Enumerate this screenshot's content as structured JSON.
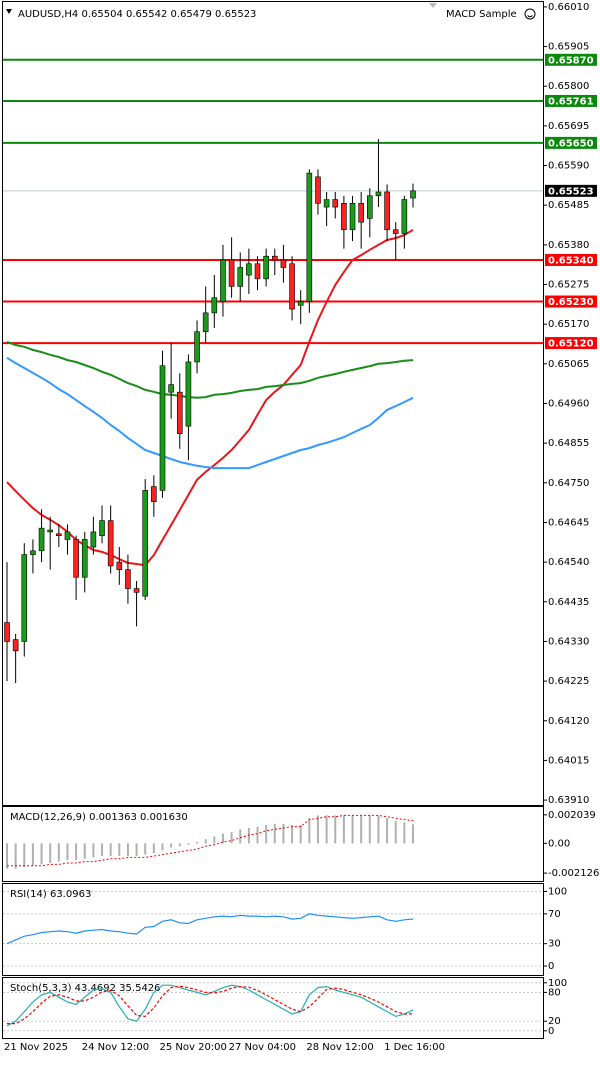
{
  "chart_data": [
    {
      "type": "candlestick",
      "title": "AUDUSD,H4 0.65504 0.65542 0.65479 0.65523",
      "indicator": "MACD Sample",
      "categories": [
        "21 Nov 2025",
        null,
        null,
        null,
        null,
        null,
        null,
        null,
        null,
        "24 Nov 12:00",
        null,
        null,
        null,
        null,
        null,
        null,
        null,
        null,
        "25 Nov 20:00",
        null,
        null,
        null,
        null,
        null,
        null,
        null,
        "27 Nov 04:00",
        null,
        null,
        null,
        null,
        null,
        null,
        null,
        null,
        "28 Nov 12:00",
        null,
        null,
        null,
        null,
        null,
        null,
        null,
        null,
        "1 Dec 16:00",
        null,
        null,
        null
      ],
      "open": [
        0.6438,
        0.64335,
        0.6433,
        0.6456,
        0.6457,
        0.6462,
        0.64615,
        0.646,
        0.646,
        0.645,
        0.6458,
        0.6461,
        0.6465,
        0.6454,
        0.6452,
        0.6447,
        0.6445,
        0.6474,
        0.6473,
        0.6499,
        0.6499,
        0.649,
        0.6507,
        0.6515,
        0.652,
        0.6523,
        0.6534,
        0.6527,
        0.653,
        0.6533,
        0.6529,
        0.6535,
        0.6534,
        0.6533,
        0.6522,
        0.6523,
        0.6556,
        0.6548,
        0.655,
        0.6549,
        0.6542,
        0.6549,
        0.6545,
        0.6551,
        0.6552,
        0.6542,
        0.6541,
        0.65504
      ],
      "high": [
        0.6454,
        0.6435,
        0.6459,
        0.646,
        0.6468,
        0.6466,
        0.6464,
        0.6464,
        0.6461,
        0.6462,
        0.6466,
        0.6469,
        0.6469,
        0.6458,
        0.6456,
        0.6449,
        0.6476,
        0.6477,
        0.651,
        0.6512,
        0.6504,
        0.6509,
        0.6518,
        0.6527,
        0.653,
        0.6538,
        0.654,
        0.6536,
        0.6537,
        0.6535,
        0.6537,
        0.6537,
        0.6538,
        0.6535,
        0.6526,
        0.6558,
        0.6558,
        0.6552,
        0.6552,
        0.6551,
        0.6551,
        0.6552,
        0.6553,
        0.6566,
        0.6554,
        0.6544,
        0.6551,
        0.65542
      ],
      "low": [
        0.64225,
        0.6422,
        0.6429,
        0.6451,
        0.6454,
        0.6452,
        0.6458,
        0.6456,
        0.6444,
        0.6446,
        0.6456,
        0.6459,
        0.6451,
        0.6448,
        0.6443,
        0.6437,
        0.6444,
        0.6466,
        0.6471,
        0.6492,
        0.6484,
        0.6481,
        0.6504,
        0.6512,
        0.6516,
        0.6519,
        0.6524,
        0.6523,
        0.6525,
        0.6526,
        0.6527,
        0.653,
        0.6528,
        0.6518,
        0.6517,
        0.652,
        0.6546,
        0.6543,
        0.6545,
        0.6537,
        0.6539,
        0.6537,
        0.654,
        0.6548,
        0.6539,
        0.6534,
        0.6537,
        0.65479
      ],
      "close": [
        0.6433,
        0.64305,
        0.6456,
        0.6457,
        0.6463,
        0.64625,
        0.6461,
        0.6462,
        0.645,
        0.646,
        0.6462,
        0.6465,
        0.6453,
        0.6452,
        0.6447,
        0.6446,
        0.6473,
        0.647,
        0.6506,
        0.6501,
        0.6488,
        0.6507,
        0.6515,
        0.652,
        0.6524,
        0.6534,
        0.6527,
        0.6532,
        0.6533,
        0.6529,
        0.6535,
        0.6534,
        0.6532,
        0.6521,
        0.6523,
        0.6557,
        0.6549,
        0.655,
        0.6548,
        0.6542,
        0.6549,
        0.6544,
        0.6551,
        0.6552,
        0.6542,
        0.6541,
        0.655,
        0.65523
      ],
      "up_color": "#1a9c1a",
      "down_color": "#ff2020",
      "series": [
        {
          "color": "#e8161a",
          "values": [
            0.64752,
            0.64728,
            0.64705,
            0.64683,
            0.64665,
            0.64652,
            0.64638,
            0.6462,
            0.64599,
            0.64585,
            0.64572,
            0.64567,
            0.64559,
            0.64548,
            0.64538,
            0.64535,
            0.64532,
            0.64559,
            0.64599,
            0.64638,
            0.64678,
            0.64718,
            0.64758,
            0.64779,
            0.64797,
            0.64816,
            0.64837,
            0.64863,
            0.6489,
            0.6493,
            0.64969,
            0.64991,
            0.65009,
            0.65036,
            0.65062,
            0.65123,
            0.65181,
            0.65229,
            0.65274,
            0.65308,
            0.6534,
            0.65353,
            0.65367,
            0.6538,
            0.65393,
            0.65398,
            0.65406,
            0.6542
          ]
        },
        {
          "color": "#1a8c1a",
          "values": [
            0.65123,
            0.65115,
            0.6511,
            0.65102,
            0.65096,
            0.65089,
            0.65083,
            0.65075,
            0.6507,
            0.65062,
            0.65054,
            0.65044,
            0.65036,
            0.65025,
            0.65014,
            0.65006,
            0.64996,
            0.64991,
            0.64985,
            0.64983,
            0.6498,
            0.64977,
            0.64975,
            0.64977,
            0.64983,
            0.64985,
            0.64988,
            0.64993,
            0.64996,
            0.64998,
            0.65004,
            0.65006,
            0.65009,
            0.65012,
            0.65014,
            0.6502,
            0.65028,
            0.65033,
            0.65038,
            0.65044,
            0.65049,
            0.65054,
            0.65059,
            0.65065,
            0.65067,
            0.6507,
            0.65073,
            0.65075
          ]
        },
        {
          "color": "#3399ff",
          "values": [
            0.65081,
            0.65067,
            0.65054,
            0.65041,
            0.65028,
            0.65014,
            0.64998,
            0.64985,
            0.64969,
            0.64953,
            0.64938,
            0.64922,
            0.64903,
            0.64887,
            0.64869,
            0.64853,
            0.64837,
            0.64829,
            0.64821,
            0.64813,
            0.64805,
            0.648,
            0.64795,
            0.64792,
            0.64789,
            0.64789,
            0.64789,
            0.64789,
            0.64789,
            0.64797,
            0.64805,
            0.64813,
            0.64821,
            0.64829,
            0.64837,
            0.64842,
            0.6485,
            0.64856,
            0.64863,
            0.64871,
            0.64882,
            0.64893,
            0.64903,
            0.64922,
            0.64943,
            0.64953,
            0.64964,
            0.64975
          ]
        }
      ],
      "levels": {
        "values": [
          0.6587,
          0.65761,
          0.6565,
          0.6534,
          0.6523,
          0.6512
        ],
        "value_labels": [
          "0.65870",
          "0.65761",
          "0.65650",
          "0.65340",
          "0.65230",
          "0.65120"
        ],
        "colors": [
          "#0a8a0a",
          "#0a8a0a",
          "#0a8a0a",
          "#ff0000",
          "#ff0000",
          "#ff0000"
        ]
      },
      "price_line": {
        "value": 0.65523,
        "value_label": "0.65523",
        "color": "#c0c8d8"
      },
      "ylim": [
        0.63897,
        0.66023
      ],
      "yticks": [
        {
          "value": 0.6601,
          "label": "0.66010"
        },
        0.65905,
        {
          "value": 0.658,
          "label": "0.65800"
        },
        0.65695,
        {
          "value": 0.6559,
          "label": "0.65590"
        },
        0.65485,
        {
          "value": 0.6538,
          "label": "0.65380"
        },
        0.65275,
        {
          "value": 0.6517,
          "label": "0.65170"
        },
        0.65065,
        {
          "value": 0.6496,
          "label": "0.64960"
        },
        0.64855,
        {
          "value": 0.6475,
          "label": "0.64750"
        },
        0.64645,
        {
          "value": 0.6454,
          "label": "0.64540"
        },
        0.64435,
        {
          "value": 0.6433,
          "label": "0.64330"
        },
        0.64225,
        {
          "value": 0.6412,
          "label": "0.64120"
        },
        0.64015,
        {
          "value": 0.6391,
          "label": "0.63910"
        }
      ],
      "grid": false
    },
    {
      "type": "macd",
      "title": "MACD(12,26,9) 0.001363 0.001630",
      "ylim": [
        -0.00269,
        0.0026
      ],
      "yticks": [
        0.002039,
        {
          "value": 0,
          "label": "0.00"
        },
        -0.002126
      ],
      "grid": false,
      "series": [
        {
          "color": "#b0b0b0",
          "mark": "bar",
          "values": [
            -0.0018,
            -0.0018,
            -0.0017,
            -0.0016,
            -0.0015,
            -0.0014,
            -0.0013,
            -0.0012,
            -0.0012,
            -0.0011,
            -0.001,
            -0.0009,
            -0.0009,
            -0.0009,
            -0.0009,
            -0.0009,
            -0.0008,
            -0.0007,
            -0.0005,
            -0.0003,
            -0.0002,
            -0.0001,
            0.0001,
            0.0003,
            0.0005,
            0.0007,
            0.0008,
            0.001,
            0.0011,
            0.0012,
            0.0013,
            0.0014,
            0.0014,
            0.0013,
            0.0013,
            0.0018,
            0.002,
            0.002,
            0.002,
            0.002,
            0.002,
            0.002,
            0.002,
            0.002,
            0.0018,
            0.0016,
            0.0015,
            0.001363
          ]
        },
        {
          "color": "#ff0000",
          "mark": "line",
          "dash": true,
          "values": [
            -0.0016,
            -0.0016,
            -0.0016,
            -0.0016,
            -0.0016,
            -0.0015,
            -0.0015,
            -0.0014,
            -0.0014,
            -0.0013,
            -0.0013,
            -0.0012,
            -0.0011,
            -0.0011,
            -0.001,
            -0.001,
            -0.001,
            -0.0009,
            -0.0008,
            -0.0007,
            -0.0006,
            -0.0005,
            -0.0004,
            -0.0002,
            -0.0001,
            0.0001,
            0.0002,
            0.0004,
            0.0006,
            0.0007,
            0.0009,
            0.001,
            0.0011,
            0.0012,
            0.0012,
            0.0017,
            0.0018,
            0.0019,
            0.0019,
            0.002,
            0.002,
            0.002,
            0.002,
            0.002,
            0.0019,
            0.0018,
            0.0017,
            0.00163
          ]
        }
      ]
    },
    {
      "type": "line",
      "title": "RSI(14) 63.0963",
      "ylim": [
        -12,
        110
      ],
      "yticks": [
        100,
        70,
        30,
        0
      ],
      "grid": true,
      "series": [
        {
          "color": "#1e90ff",
          "values": [
            30,
            35,
            40,
            42,
            45,
            46,
            47,
            46,
            44,
            47,
            48,
            49,
            47,
            46,
            44,
            43,
            52,
            53,
            60,
            62,
            58,
            57,
            62,
            64,
            66,
            67,
            66,
            68,
            67,
            67,
            66,
            67,
            66,
            63,
            64,
            70,
            68,
            67,
            66,
            65,
            64,
            65,
            66,
            67,
            62,
            60,
            62,
            63.0963
          ]
        }
      ]
    },
    {
      "type": "line",
      "title": "Stoch(5,3,3) 43.4692 35.5426",
      "ylim": [
        -15,
        110
      ],
      "yticks": [
        100,
        80,
        20,
        0
      ],
      "grid": true,
      "series": [
        {
          "color": "#20b2aa",
          "values": [
            10,
            20,
            40,
            60,
            75,
            80,
            70,
            60,
            55,
            70,
            85,
            88,
            80,
            50,
            25,
            20,
            45,
            80,
            95,
            95,
            90,
            85,
            80,
            75,
            82,
            90,
            95,
            92,
            85,
            75,
            65,
            55,
            45,
            35,
            40,
            75,
            90,
            92,
            85,
            80,
            75,
            70,
            60,
            50,
            40,
            30,
            35,
            43.4692
          ]
        },
        {
          "color": "#ff0000",
          "dash": true,
          "values": [
            15,
            15,
            25,
            40,
            58,
            72,
            75,
            70,
            62,
            62,
            70,
            81,
            84,
            73,
            52,
            32,
            30,
            48,
            73,
            90,
            93,
            90,
            85,
            80,
            79,
            82,
            89,
            92,
            91,
            84,
            75,
            65,
            55,
            45,
            40,
            50,
            68,
            86,
            89,
            86,
            80,
            75,
            68,
            60,
            50,
            40,
            35,
            35.5426
          ]
        }
      ]
    }
  ]
}
